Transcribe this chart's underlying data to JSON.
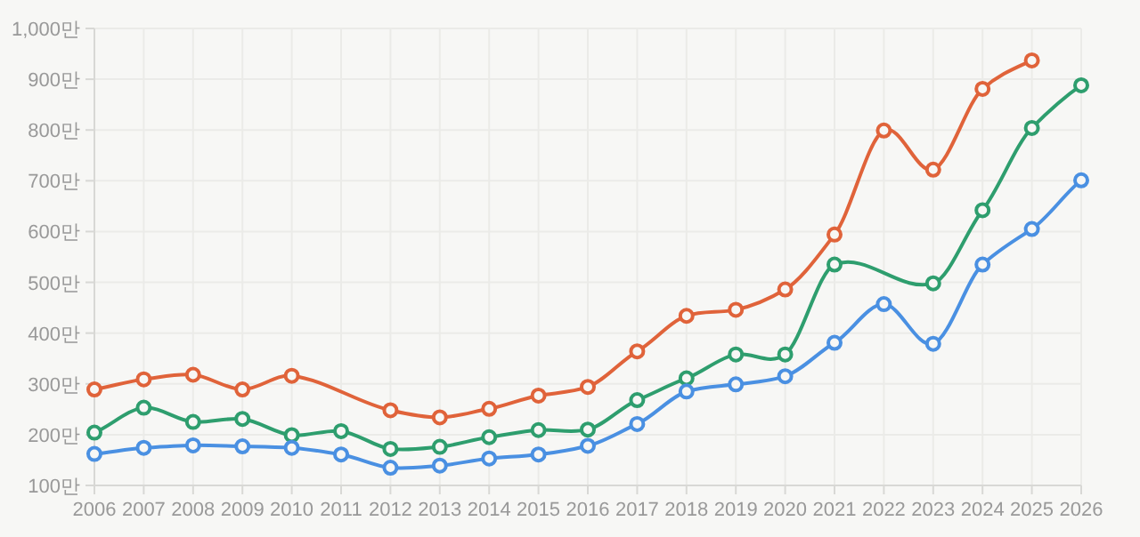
{
  "chart_data": {
    "type": "line",
    "categories": [
      "2006",
      "2007",
      "2008",
      "2009",
      "2010",
      "2011",
      "2012",
      "2013",
      "2014",
      "2015",
      "2016",
      "2017",
      "2018",
      "2019",
      "2020",
      "2021",
      "2022",
      "2023",
      "2024",
      "2025",
      "2026"
    ],
    "series": [
      {
        "color": "#e0633a",
        "values": [
          289,
          309,
          318,
          289,
          316,
          null,
          248,
          234,
          251,
          277,
          294,
          364,
          434,
          446,
          486,
          594,
          799,
          722,
          881,
          937,
          null
        ]
      },
      {
        "color": "#2e9e6e",
        "values": [
          204,
          253,
          225,
          231,
          199,
          207,
          172,
          176,
          195,
          209,
          210,
          268,
          311,
          358,
          358,
          535,
          null,
          498,
          642,
          804,
          888
        ]
      },
      {
        "color": "#4a90e2",
        "values": [
          162,
          174,
          179,
          177,
          174,
          161,
          135,
          139,
          153,
          161,
          178,
          221,
          285,
          299,
          315,
          381,
          457,
          379,
          535,
          605,
          701
        ]
      }
    ],
    "ylim": [
      100,
      1000
    ],
    "yticks": [
      {
        "value": 100,
        "label": "100만"
      },
      {
        "value": 200,
        "label": "200만"
      },
      {
        "value": 300,
        "label": "300만"
      },
      {
        "value": 400,
        "label": "400만"
      },
      {
        "value": 500,
        "label": "500만"
      },
      {
        "value": 600,
        "label": "600만"
      },
      {
        "value": 700,
        "label": "700만"
      },
      {
        "value": 800,
        "label": "800만"
      },
      {
        "value": 900,
        "label": "900만"
      },
      {
        "value": 1000,
        "label": "1,000만"
      }
    ],
    "grid": true,
    "marker": "circle",
    "line_style": "solid"
  }
}
